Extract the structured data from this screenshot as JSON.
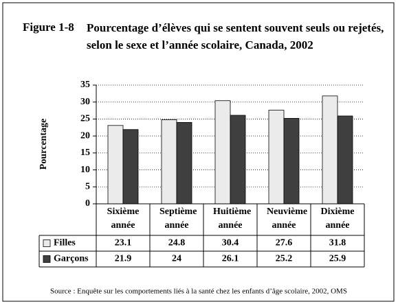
{
  "figure_label": "Figure 1-8",
  "chart_data": {
    "type": "bar",
    "title": "Pourcentage d’élèves qui se sentent souvent seuls ou rejetés, selon le sexe et l’année scolaire, Canada, 2002",
    "y_label": "Pourcentage",
    "categories": [
      "Sixième année",
      "Septième année",
      "Huitième année",
      "Neuvième année",
      "Dixième année"
    ],
    "series": [
      {
        "name": "Filles",
        "color": "#ebebeb",
        "values": [
          23.1,
          24.8,
          30.4,
          27.6,
          31.8
        ]
      },
      {
        "name": "Garçons",
        "color": "#404040",
        "values": [
          21.9,
          24,
          26.1,
          25.2,
          25.9
        ]
      }
    ],
    "ylim": [
      0,
      35
    ],
    "yticks": [
      0,
      5,
      10,
      15,
      20,
      25,
      30,
      35
    ],
    "grid": true
  },
  "source": "Source : Enquête sur les comportements liés à la santé chez les enfants d’âge scolaire, 2002, OMS"
}
